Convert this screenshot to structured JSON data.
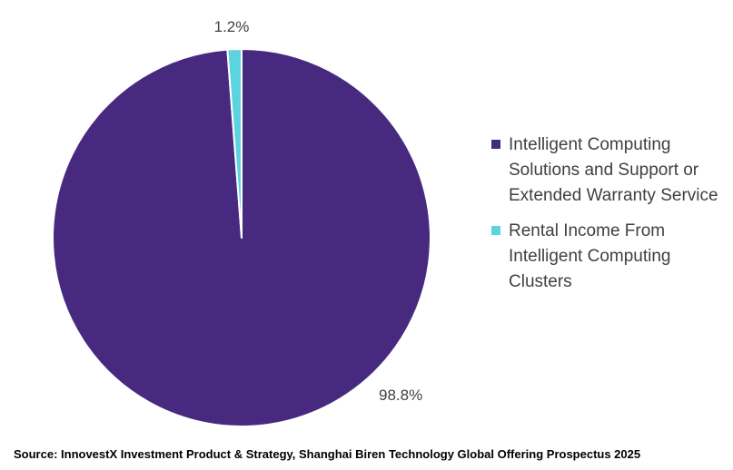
{
  "chart_data": {
    "type": "pie",
    "categories": [
      "Intelligent Computing Solutions and Support or Extended Warranty Service",
      "Rental Income From Intelligent Computing Clusters"
    ],
    "values": [
      98.8,
      1.2
    ],
    "data_labels": [
      "98.8%",
      "1.2%"
    ],
    "colors": [
      "#472A80",
      "#5DD3E0"
    ],
    "title": "",
    "legend_position": "right"
  },
  "source": "Source: InnovestX Investment Product & Strategy, Shanghai Biren Technology Global Offering Prospectus 2025"
}
